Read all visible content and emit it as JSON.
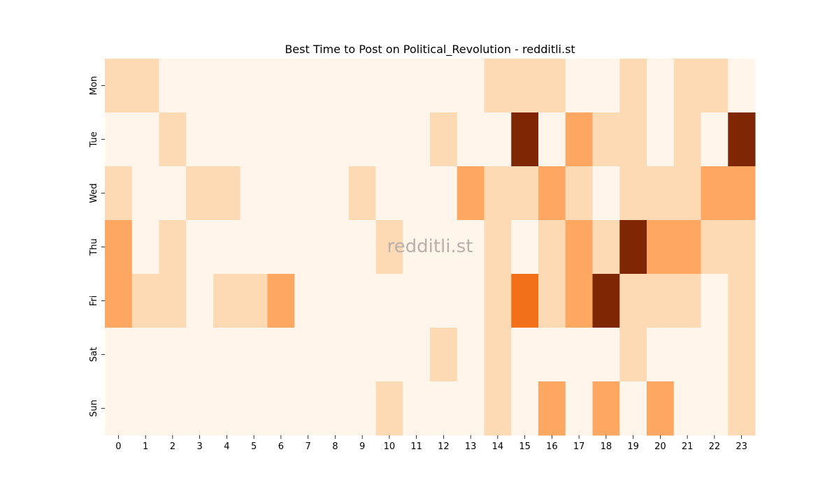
{
  "chart_data": {
    "type": "heatmap",
    "title": "Best Time to Post on Political_Revolution - redditli.st",
    "watermark": "redditli.st",
    "xlabel": "",
    "ylabel": "",
    "x_categories": [
      "0",
      "1",
      "2",
      "3",
      "4",
      "5",
      "6",
      "7",
      "8",
      "9",
      "10",
      "11",
      "12",
      "13",
      "14",
      "15",
      "16",
      "17",
      "18",
      "19",
      "20",
      "21",
      "22",
      "23"
    ],
    "y_categories": [
      "Mon",
      "Tue",
      "Wed",
      "Thu",
      "Fri",
      "Sat",
      "Sun"
    ],
    "values": [
      [
        1,
        1,
        0,
        0,
        0,
        0,
        0,
        0,
        0,
        0,
        0,
        0,
        0,
        0,
        1,
        1,
        1,
        0,
        0,
        1,
        0,
        1,
        1,
        0
      ],
      [
        0,
        0,
        1,
        0,
        0,
        0,
        0,
        0,
        0,
        0,
        0,
        0,
        1,
        0,
        0,
        4,
        0,
        2,
        1,
        1,
        0,
        1,
        0,
        4
      ],
      [
        1,
        0,
        0,
        1,
        1,
        0,
        0,
        0,
        0,
        1,
        0,
        0,
        0,
        2,
        1,
        1,
        2,
        1,
        0,
        1,
        1,
        1,
        2,
        2
      ],
      [
        2,
        0,
        1,
        0,
        0,
        0,
        0,
        0,
        0,
        0,
        1,
        0,
        0,
        0,
        1,
        0,
        1,
        2,
        1,
        4,
        2,
        2,
        1,
        1
      ],
      [
        2,
        1,
        1,
        0,
        1,
        1,
        2,
        0,
        0,
        0,
        0,
        0,
        0,
        0,
        1,
        3,
        1,
        2,
        4,
        1,
        1,
        1,
        0,
        1
      ],
      [
        0,
        0,
        0,
        0,
        0,
        0,
        0,
        0,
        0,
        0,
        0,
        0,
        1,
        0,
        1,
        0,
        0,
        0,
        0,
        1,
        0,
        0,
        0,
        1
      ],
      [
        0,
        0,
        0,
        0,
        0,
        0,
        0,
        0,
        0,
        0,
        1,
        0,
        0,
        0,
        1,
        0,
        2,
        0,
        2,
        0,
        2,
        0,
        0,
        1
      ]
    ],
    "value_range": [
      0,
      4
    ],
    "colorscale": [
      "#fff5eb",
      "#fdd9b4",
      "#fda762",
      "#f3701b",
      "#7f2704"
    ],
    "colorbar": false,
    "grid": false
  }
}
